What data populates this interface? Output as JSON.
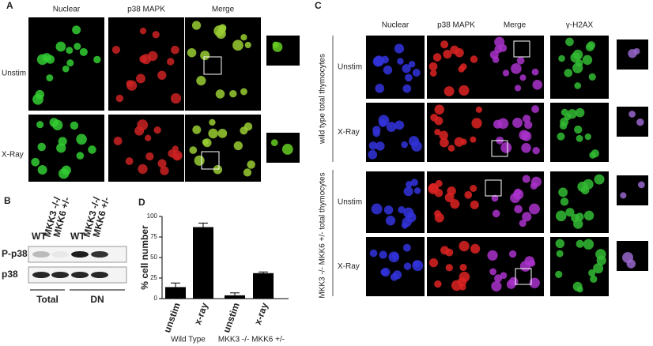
{
  "panel_a": {
    "label": "A",
    "columns": [
      "Nuclear",
      "p38 MAPK",
      "Merge"
    ],
    "rows": [
      "Unstim",
      "X-Ray"
    ]
  },
  "panel_b": {
    "label": "B",
    "lanes": [
      [
        "WT"
      ],
      [
        "MKK3 -/-/",
        "MKK6 +/-"
      ],
      [
        "WT"
      ],
      [
        "MKK3 -/-/",
        "MKK6 +/-"
      ]
    ],
    "bands": [
      "P-p38",
      "p38"
    ],
    "groups": [
      "Total",
      "DN"
    ]
  },
  "panel_c": {
    "label": "C",
    "columns": [
      "Nuclear",
      "p38 MAPK",
      "Merge",
      "γ-H2AX"
    ],
    "row_groups": [
      {
        "label": "wild type total thymocytes",
        "rows": [
          "Unstim",
          "X-Ray"
        ]
      },
      {
        "label": "MKK3 -/- MKK6 +/- total thymocytes",
        "rows": [
          "Unstim",
          "X-Ray"
        ]
      }
    ]
  },
  "chart_data": {
    "type": "bar",
    "label": "D",
    "ylabel": "% cell number",
    "categories": [
      "unstim",
      "x-ray",
      "unstim",
      "x-ray"
    ],
    "values": [
      14,
      87,
      4,
      31
    ],
    "errors": [
      5,
      5,
      3,
      1.5
    ],
    "groups": [
      "Wild Type",
      "MKK3 -/-  MKK6 +/-"
    ],
    "ylim": [
      0,
      100
    ],
    "yticks": [
      0,
      25,
      50,
      75,
      100
    ],
    "color": "#000000"
  }
}
